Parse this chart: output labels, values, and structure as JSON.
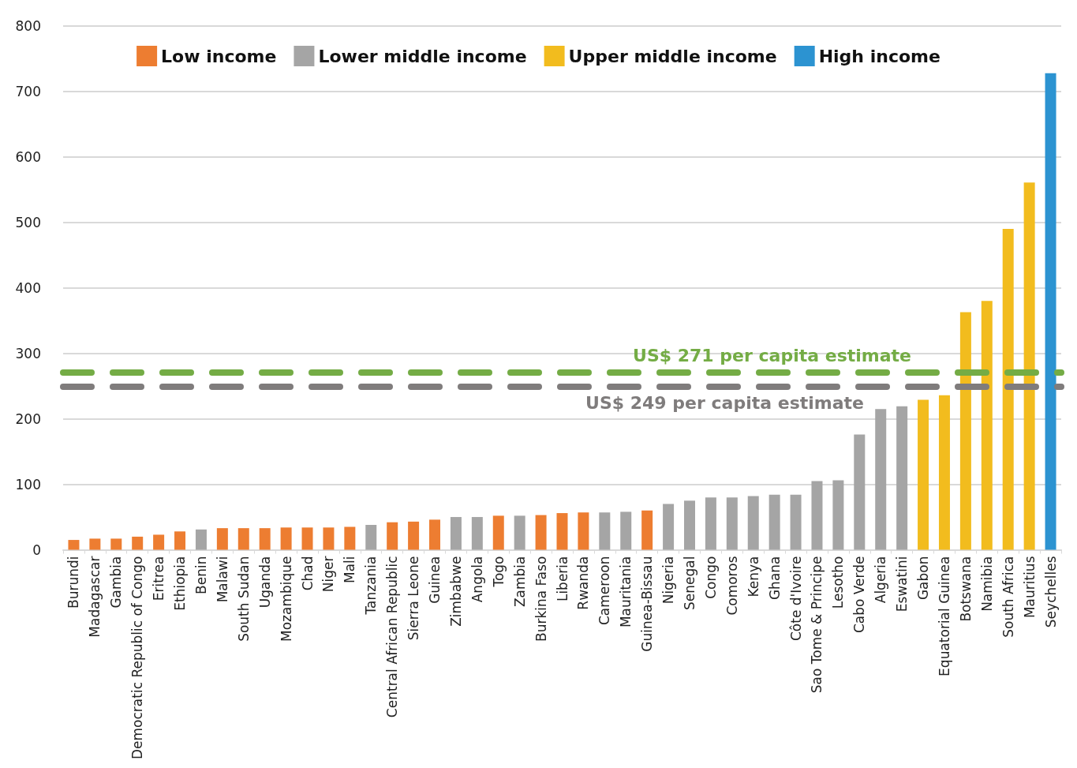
{
  "chart_data": {
    "type": "bar",
    "categories": [
      "Burundi",
      "Madagascar",
      "Gambia",
      "Democratic Republic of Congo",
      "Eritrea",
      "Ethiopia",
      "Benin",
      "Malawi",
      "South Sudan",
      "Uganda",
      "Mozambique",
      "Chad",
      "Niger",
      "Mali",
      "Tanzania",
      "Central African Republic",
      "Sierra Leone",
      "Guinea",
      "Zimbabwe",
      "Angola",
      "Togo",
      "Zambia",
      "Burkina Faso",
      "Liberia",
      "Rwanda",
      "Cameroon",
      "Mauritania",
      "Guinea-Bissau",
      "Nigeria",
      "Senegal",
      "Congo",
      "Comoros",
      "Kenya",
      "Ghana",
      "Côte d'Ivoire",
      "Sao Tome & Principe",
      "Lesotho",
      "Cabo Verde",
      "Algeria",
      "Eswatini",
      "Gabon",
      "Equatorial Guinea",
      "Botswana",
      "Namibia",
      "South Africa",
      "Mauritius",
      "Seychelles"
    ],
    "series": [
      {
        "name": "Low income",
        "color": "#ed7d31",
        "values": [
          15,
          17,
          17,
          20,
          23,
          28,
          null,
          33,
          33,
          33,
          34,
          34,
          34,
          35,
          null,
          42,
          43,
          46,
          null,
          null,
          52,
          null,
          53,
          56,
          57,
          null,
          null,
          60,
          null,
          null,
          null,
          null,
          null,
          null,
          null,
          null,
          null,
          null,
          null,
          null,
          null,
          null,
          null,
          null,
          null,
          null,
          null
        ]
      },
      {
        "name": "Lower middle income",
        "color": "#a5a5a5",
        "values": [
          null,
          null,
          null,
          null,
          null,
          null,
          31,
          null,
          null,
          null,
          null,
          null,
          null,
          null,
          38,
          null,
          null,
          null,
          50,
          50,
          null,
          52,
          null,
          null,
          null,
          57,
          58,
          null,
          70,
          75,
          80,
          80,
          82,
          84,
          84,
          105,
          106,
          176,
          215,
          219,
          null,
          null,
          null,
          null,
          null,
          null,
          null
        ]
      },
      {
        "name": "Upper middle income",
        "color": "#f2bc1e",
        "values": [
          null,
          null,
          null,
          null,
          null,
          null,
          null,
          null,
          null,
          null,
          null,
          null,
          null,
          null,
          null,
          null,
          null,
          null,
          null,
          null,
          null,
          null,
          null,
          null,
          null,
          null,
          null,
          null,
          null,
          null,
          null,
          null,
          null,
          null,
          null,
          null,
          null,
          null,
          null,
          null,
          229,
          236,
          363,
          380,
          490,
          561,
          null
        ]
      },
      {
        "name": "High income",
        "color": "#2c93d1",
        "values": [
          null,
          null,
          null,
          null,
          null,
          null,
          null,
          null,
          null,
          null,
          null,
          null,
          null,
          null,
          null,
          null,
          null,
          null,
          null,
          null,
          null,
          null,
          null,
          null,
          null,
          null,
          null,
          null,
          null,
          null,
          null,
          null,
          null,
          null,
          null,
          null,
          null,
          null,
          null,
          null,
          null,
          null,
          null,
          null,
          null,
          null,
          728
        ]
      }
    ],
    "ylim": [
      0,
      800
    ],
    "yticks": [
      0,
      100,
      200,
      300,
      400,
      500,
      600,
      700,
      800
    ],
    "grid": "y",
    "legend": "top",
    "ref_lines": [
      {
        "axis": "y",
        "value": 271,
        "label": "US$ 271 per capita estimate",
        "color": "#74ac45",
        "line_style": "dashed"
      },
      {
        "axis": "y",
        "value": 249,
        "label": "US$ 249 per capita estimate",
        "color": "#7f7c7c",
        "line_style": "dashed"
      }
    ]
  }
}
